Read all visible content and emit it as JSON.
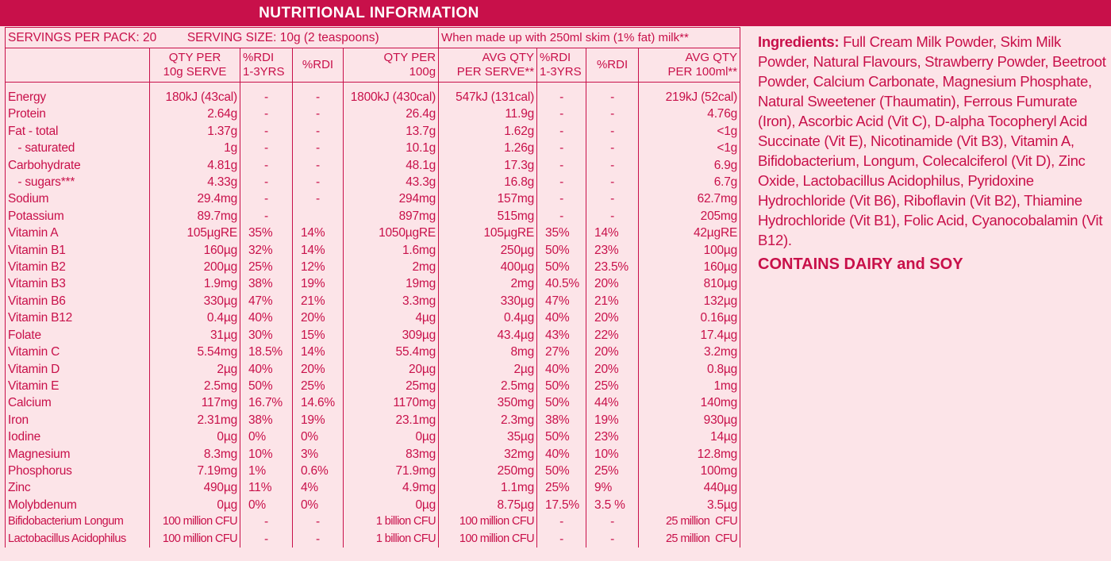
{
  "colors": {
    "brand": "#c8104a",
    "background": "#fce4e8"
  },
  "title": "NUTRITIONAL INFORMATION",
  "info": {
    "servings": "SERVINGS PER PACK: 20",
    "serving_size": "SERVING SIZE: 10g (2 teaspoons)",
    "made_up": "When made up with 250ml skim (1% fat) milk**"
  },
  "headers": [
    "",
    "QTY PER\n10g SERVE",
    "%RDI\n1-3YRS",
    "%RDI",
    "QTY PER\n100g",
    "AVG QTY\nPER SERVE**",
    "%RDI\n1-3YRS",
    "%RDI",
    "AVG QTY\nPER 100ml**"
  ],
  "rows": [
    [
      "Energy",
      "180kJ (43cal)",
      "-",
      "-",
      "1800kJ (430cal)",
      "547kJ (131cal)",
      "-",
      "-",
      "219kJ (52cal)"
    ],
    [
      "Protein",
      "2.64g",
      "-",
      "-",
      "26.4g",
      "11.9g",
      "-",
      "-",
      "4.76g"
    ],
    [
      "Fat - total",
      "1.37g",
      "-",
      "-",
      "13.7g",
      "1.62g",
      "-",
      "-",
      "<1g"
    ],
    [
      "   - saturated",
      "1g",
      "-",
      "-",
      "10.1g",
      "1.26g",
      "-",
      "-",
      "<1g"
    ],
    [
      "Carbohydrate",
      "4.81g",
      "-",
      "-",
      "48.1g",
      "17.3g",
      "-",
      "-",
      "6.9g"
    ],
    [
      "   - sugars***",
      "4.33g",
      "-",
      "-",
      "43.3g",
      "16.8g",
      "-",
      "-",
      "6.7g"
    ],
    [
      "Sodium",
      "29.4mg",
      "-",
      "-",
      "294mg",
      "157mg",
      "-",
      "-",
      "62.7mg"
    ],
    [
      "Potassium",
      "89.7mg",
      "-",
      "",
      "897mg",
      "515mg",
      "-",
      "-",
      "205mg"
    ],
    [
      "Vitamin A",
      "105µgRE",
      "35%",
      "14%",
      "1050µgRE",
      "105µgRE",
      "35%",
      "14%",
      "42µgRE"
    ],
    [
      "Vitamin B1",
      "160µg",
      "32%",
      "14%",
      "1.6mg",
      "250µg",
      "50%",
      "23%",
      "100µg"
    ],
    [
      "Vitamin B2",
      "200µg",
      "25%",
      "12%",
      "2mg",
      "400µg",
      "50%",
      "23.5%",
      "160µg"
    ],
    [
      "Vitamin B3",
      "1.9mg",
      "38%",
      "19%",
      "19mg",
      "2mg",
      "40.5%",
      "20%",
      "810µg"
    ],
    [
      "Vitamin B6",
      "330µg",
      "47%",
      "21%",
      "3.3mg",
      "330µg",
      "47%",
      "21%",
      "132µg"
    ],
    [
      "Vitamin B12",
      "0.4µg",
      "40%",
      "20%",
      "4µg",
      "0.4µg",
      "40%",
      "20%",
      "0.16µg"
    ],
    [
      "Folate",
      "31µg",
      "30%",
      "15%",
      "309µg",
      "43.4µg",
      "43%",
      "22%",
      "17.4µg"
    ],
    [
      "Vitamin C",
      "5.54mg",
      "18.5%",
      "14%",
      "55.4mg",
      "8mg",
      "27%",
      "20%",
      "3.2mg"
    ],
    [
      "Vitamin D",
      "2µg",
      "40%",
      "20%",
      "20µg",
      "2µg",
      "40%",
      "20%",
      "0.8µg"
    ],
    [
      "Vitamin E",
      "2.5mg",
      "50%",
      "25%",
      "25mg",
      "2.5mg",
      "50%",
      "25%",
      "1mg"
    ],
    [
      "Calcium",
      "117mg",
      "16.7%",
      "14.6%",
      "1170mg",
      "350mg",
      "50%",
      "44%",
      "140mg"
    ],
    [
      "Iron",
      "2.31mg",
      "38%",
      "19%",
      "23.1mg",
      "2.3mg",
      "38%",
      "19%",
      "930µg"
    ],
    [
      "Iodine",
      "0µg",
      "0%",
      "0%",
      "0µg",
      "35µg",
      "50%",
      "23%",
      "14µg"
    ],
    [
      "Magnesium",
      "8.3mg",
      "10%",
      "3%",
      "83mg",
      "32mg",
      "40%",
      "10%",
      "12.8mg"
    ],
    [
      "Phosphorus",
      "7.19mg",
      "1%",
      "0.6%",
      "71.9mg",
      "250mg",
      "50%",
      "25%",
      "100mg"
    ],
    [
      "Zinc",
      "490µg",
      "11%",
      "4%",
      "4.9mg",
      "1.1mg",
      "25%",
      "9%",
      "440µg"
    ],
    [
      "Molybdenum",
      "0µg",
      "0%",
      "0%",
      "0µg",
      "8.75µg",
      "17.5%",
      "3.5 %",
      "3.5µg"
    ],
    [
      "Bifidobacterium Longum",
      "100 million CFU",
      "-",
      "-",
      "1 billion CFU",
      "100 million CFU",
      "-",
      "-",
      "25 million  CFU"
    ],
    [
      "Lactobacillus Acidophilus",
      "100 million CFU",
      "-",
      "-",
      "1 billion CFU",
      "100 million CFU",
      "-",
      "-",
      "25 million  CFU"
    ]
  ],
  "ingredients": {
    "label": "Ingredients:",
    "text": " Full Cream Milk Powder, Skim Milk Powder, Natural Flavours, Strawberry Powder, Beetroot Powder, Calcium Carbonate, Magnesium Phosphate, Natural Sweetener (Thaumatin), Ferrous Fumurate (Iron), Ascorbic Acid (Vit C), D-alpha Tocopheryl Acid Succinate (Vit E), Nicotinamide (Vit B3), Vitamin A, Bifidobacterium, Longum, Colecalciferol (Vit D), Zinc Oxide, Lactobacillus Acidophilus, Pyridoxine Hydrochloride (Vit B6), Riboflavin (Vit B2), Thiamine Hydrochloride (Vit B1), Folic Acid, Cyanocobalamin (Vit B12)."
  },
  "allergen": "CONTAINS DAIRY and SOY"
}
